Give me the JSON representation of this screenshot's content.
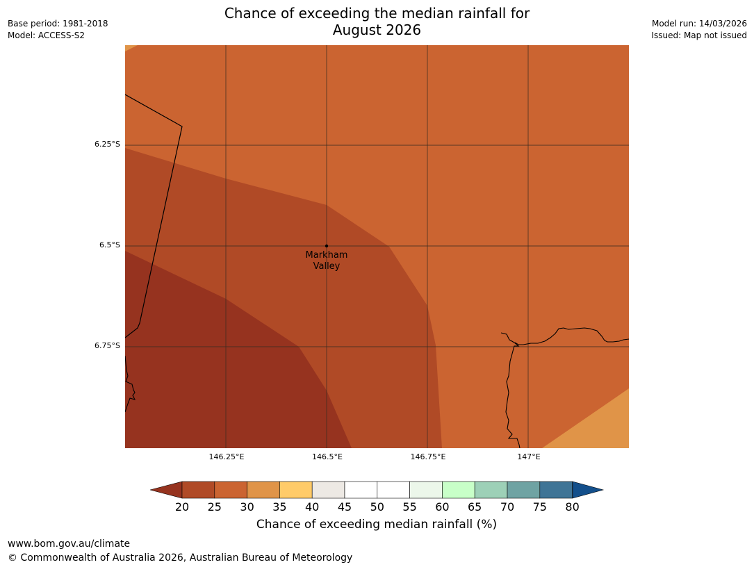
{
  "header": {
    "title_line1": "Chance of exceeding the median rainfall for",
    "title_line2": "August 2026",
    "base_period": "Base period: 1981-2018",
    "model": "Model: ACCESS-S2",
    "model_run": "Model run: 14/03/2026",
    "issued": "Issued: Map not issued"
  },
  "map": {
    "lat_labels": [
      "6.25°S",
      "6.5°S",
      "6.75°S"
    ],
    "lon_labels": [
      "146.25°E",
      "146.5°E",
      "146.75°E",
      "147°E"
    ],
    "place": {
      "name_line1": "Markham",
      "name_line2": "Valley",
      "lat": "6.5°S",
      "lon": "146.5°E"
    },
    "band_colors": {
      "20-25": "#96331f",
      "25-30": "#b04a26",
      "30-35": "#cb6431",
      "35-40": "#e09448"
    }
  },
  "legend": {
    "title": "Chance of exceeding median rainfall (%)",
    "ticks": [
      "20",
      "25",
      "30",
      "35",
      "40",
      "45",
      "50",
      "55",
      "60",
      "65",
      "70",
      "75",
      "80"
    ],
    "under_color": "#96331f",
    "over_color": "#134f8b",
    "colors": [
      "#b04a26",
      "#cb6431",
      "#e09448",
      "#ffcb69",
      "#ede9e4",
      "#ffffff",
      "#ffffff",
      "#ecf7ea",
      "#c8ffc8",
      "#9dd0b7",
      "#6fa3a3",
      "#3f7496"
    ]
  },
  "footer": {
    "url": "www.bom.gov.au/climate",
    "copyright": "© Commonwealth of Australia 2026, Australian Bureau of Meteorology"
  }
}
